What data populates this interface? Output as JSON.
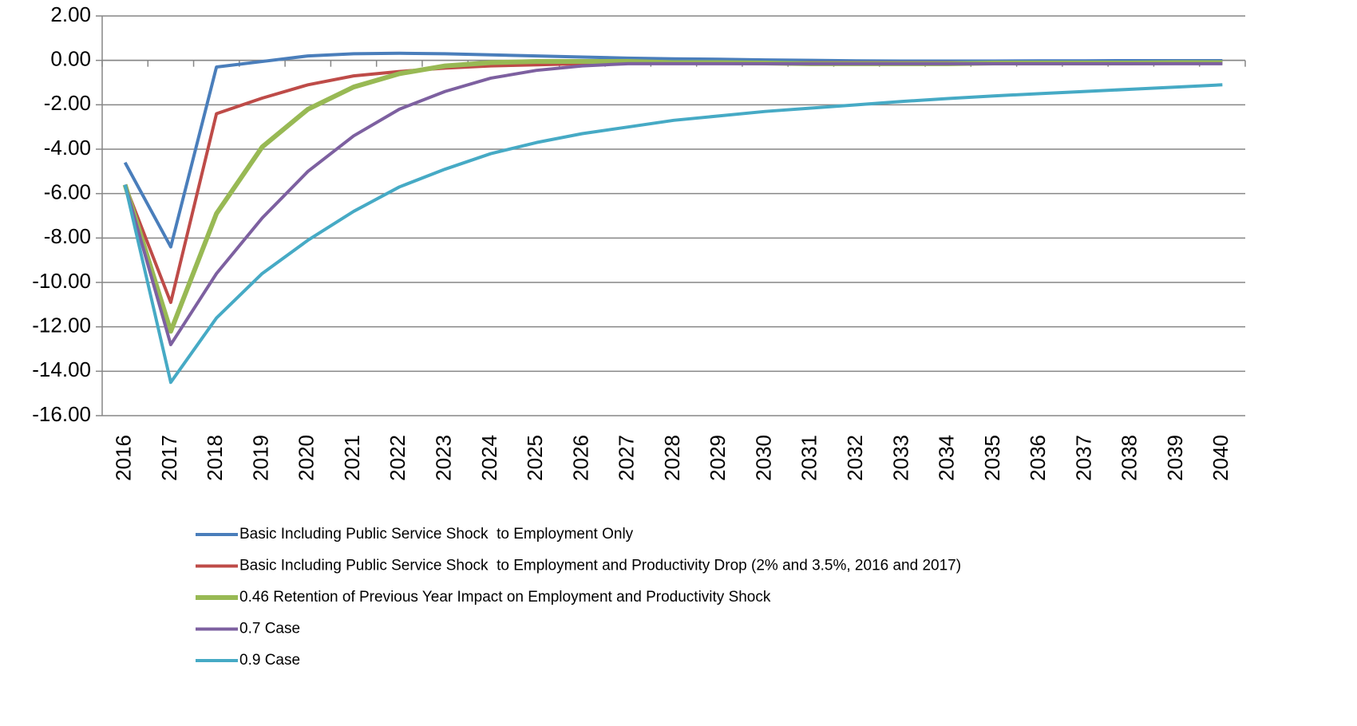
{
  "chart_data": {
    "type": "line",
    "categories": [
      "2016",
      "2017",
      "2018",
      "2019",
      "2020",
      "2021",
      "2022",
      "2023",
      "2024",
      "2025",
      "2026",
      "2027",
      "2028",
      "2029",
      "2030",
      "2031",
      "2032",
      "2033",
      "2034",
      "2035",
      "2036",
      "2037",
      "2038",
      "2039",
      "2040"
    ],
    "series": [
      {
        "name": "Basic Including Public Service Shock  to Employment Only",
        "color": "#4a7ebb",
        "values": [
          -4.6,
          -8.4,
          -0.3,
          -0.05,
          0.2,
          0.3,
          0.32,
          0.3,
          0.25,
          0.2,
          0.15,
          0.1,
          0.07,
          0.05,
          0.02,
          0,
          -0.02,
          -0.03,
          -0.03,
          -0.03,
          -0.02,
          -0.02,
          -0.01,
          -0.01,
          -0.01
        ]
      },
      {
        "name": "Basic Including Public Service Shock  to Employment and Productivity Drop (2% and 3.5%, 2016 and 2017)",
        "color": "#be4b48",
        "values": [
          -5.6,
          -10.9,
          -2.4,
          -1.7,
          -1.1,
          -0.7,
          -0.5,
          -0.35,
          -0.25,
          -0.2,
          -0.15,
          -0.12,
          -0.1,
          -0.1,
          -0.1,
          -0.1,
          -0.1,
          -0.1,
          -0.1,
          -0.1,
          -0.1,
          -0.1,
          -0.1,
          -0.1,
          -0.1
        ]
      },
      {
        "name": "0.46 Retention of Previous Year Impact on Employment and Productivity Shock",
        "color": "#98b954",
        "values": [
          -5.6,
          -12.2,
          -6.9,
          -3.9,
          -2.2,
          -1.2,
          -0.6,
          -0.25,
          -0.1,
          -0.05,
          -0.05,
          -0.05,
          -0.1,
          -0.1,
          -0.12,
          -0.15,
          -0.15,
          -0.15,
          -0.15,
          -0.12,
          -0.12,
          -0.12,
          -0.12,
          -0.1,
          -0.1
        ]
      },
      {
        "name": "0.7 Case",
        "color": "#7d60a0",
        "values": [
          -5.6,
          -12.8,
          -9.6,
          -7.1,
          -5.0,
          -3.4,
          -2.2,
          -1.4,
          -0.8,
          -0.45,
          -0.25,
          -0.15,
          -0.15,
          -0.15,
          -0.15,
          -0.15,
          -0.15,
          -0.15,
          -0.15,
          -0.15,
          -0.15,
          -0.15,
          -0.15,
          -0.15,
          -0.15
        ]
      },
      {
        "name": "0.9 Case",
        "color": "#46aac5",
        "values": [
          -5.6,
          -14.5,
          -11.6,
          -9.6,
          -8.1,
          -6.8,
          -5.7,
          -4.9,
          -4.2,
          -3.7,
          -3.3,
          -3.0,
          -2.7,
          -2.5,
          -2.3,
          -2.15,
          -2.0,
          -1.85,
          -1.72,
          -1.6,
          -1.5,
          -1.4,
          -1.3,
          -1.2,
          -1.1
        ]
      }
    ],
    "ylim": [
      -16,
      2
    ],
    "yticks": [
      {
        "value": -16,
        "label": "-16.00"
      },
      {
        "value": -14,
        "label": "-14.00"
      },
      {
        "value": -12,
        "label": "-12.00"
      },
      {
        "value": -10,
        "label": "-10.00"
      },
      {
        "value": -8,
        "label": "-8.00"
      },
      {
        "value": -6,
        "label": "-6.00"
      },
      {
        "value": -4,
        "label": "-4.00"
      },
      {
        "value": -2,
        "label": "-2.00"
      },
      {
        "value": 0,
        "label": "0.00"
      },
      {
        "value": 2,
        "label": "2.00"
      }
    ],
    "grid": true,
    "legend": "bottom"
  }
}
